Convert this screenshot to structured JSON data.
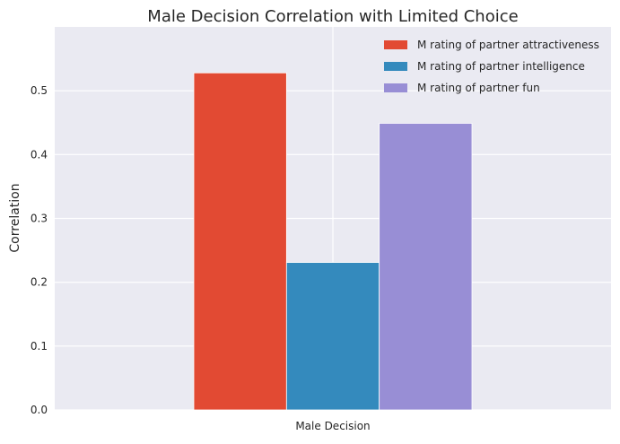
{
  "colors": {
    "plot_background": "#eaeaf2",
    "grid": "#ffffff",
    "text": "#262626"
  },
  "chart_data": {
    "type": "bar",
    "title": "Male Decision Correlation with Limited Choice",
    "xlabel": "",
    "ylabel": "Correlation",
    "categories": [
      "Male Decision"
    ],
    "series": [
      {
        "name": "M rating of partner attractiveness",
        "values": [
          0.528
        ],
        "color": "#e24a33"
      },
      {
        "name": "M rating of partner intelligence",
        "values": [
          0.231
        ],
        "color": "#348abd"
      },
      {
        "name": "M rating of partner fun",
        "values": [
          0.449
        ],
        "color": "#988ed5"
      }
    ],
    "ylim": [
      0,
      0.6
    ],
    "yticks": [
      "0.0",
      "0.1",
      "0.2",
      "0.3",
      "0.4",
      "0.5"
    ],
    "grid": true,
    "legend_position": "top-right"
  }
}
